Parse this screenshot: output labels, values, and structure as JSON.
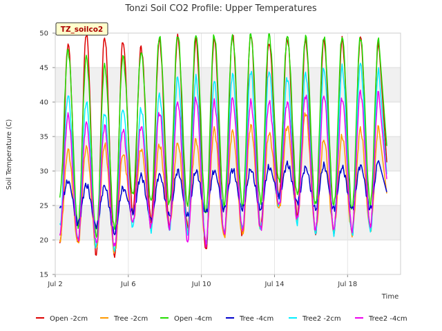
{
  "chart_data": {
    "type": "line",
    "title": "Tonzi Soil CO2 Profile: Upper Temperatures",
    "xlabel": "Time",
    "ylabel": "Soil Temperature (C)",
    "badge": "TZ_soilco2",
    "xlim": [
      2.0,
      20.9
    ],
    "ylim": [
      15,
      50
    ],
    "x_ticks": [
      {
        "label": "Jul 2",
        "value": 2
      },
      {
        "label": "Jul 6",
        "value": 6
      },
      {
        "label": "Jul 10",
        "value": 10
      },
      {
        "label": "Jul 14",
        "value": 14
      },
      {
        "label": "Jul 18",
        "value": 18
      }
    ],
    "y_ticks": [
      15,
      20,
      25,
      30,
      35,
      40,
      45,
      50
    ],
    "bands": [
      [
        20,
        25
      ],
      [
        30,
        35
      ],
      [
        40,
        45
      ]
    ],
    "days": [
      2.25,
      3.25,
      4.25,
      5.25,
      6.25,
      7.25,
      8.25,
      9.25,
      10.25,
      11.25,
      12.25,
      13.25,
      14.25,
      15.25,
      16.25,
      17.25,
      18.25,
      19.25
    ],
    "peak_offset": 0.45,
    "series": [
      {
        "name": "Open -2cm",
        "color": "#dd0000",
        "mins": [
          19.3,
          19.4,
          17.8,
          17.6,
          24.0,
          22.8,
          22.0,
          21.7,
          18.4,
          20.5,
          20.6,
          21.7,
          26.4,
          23.5,
          20.9,
          21.0,
          20.8,
          21.7
        ],
        "maxs": [
          48.5,
          50.0,
          49.5,
          48.8,
          48.0,
          49.0,
          49.5,
          49.0,
          49.2,
          49.7,
          49.8,
          48.6,
          49.2,
          49.0,
          49.0,
          49.0,
          49.4,
          49.0
        ]
      },
      {
        "name": "Tree -2cm",
        "color": "#ff9900",
        "mins": [
          20.0,
          19.5,
          18.8,
          18.2,
          22.5,
          22.0,
          21.8,
          21.5,
          19.6,
          20.5,
          20.8,
          21.5,
          24.5,
          23.0,
          21.2,
          21.4,
          21.0,
          21.5
        ],
        "maxs": [
          33.0,
          33.5,
          33.8,
          32.5,
          33.2,
          33.8,
          34.0,
          34.5,
          36.0,
          35.8,
          36.5,
          35.5,
          36.5,
          38.5,
          34.5,
          35.0,
          36.0,
          36.5
        ]
      },
      {
        "name": "Open -4cm",
        "color": "#22dd00",
        "mins": [
          26.5,
          22.0,
          20.5,
          21.5,
          26.5,
          25.5,
          25.2,
          25.0,
          24.0,
          25.0,
          25.0,
          25.5,
          28.5,
          26.5,
          25.0,
          25.0,
          24.5,
          25.2
        ],
        "maxs": [
          47.5,
          46.5,
          45.3,
          46.5,
          47.2,
          49.5,
          49.8,
          49.8,
          49.7,
          49.5,
          49.8,
          49.8,
          49.5,
          49.5,
          49.5,
          49.5,
          49.4,
          49.3
        ]
      },
      {
        "name": "Tree -4cm",
        "color": "#0000cc",
        "mins": [
          24.5,
          22.5,
          22.0,
          21.0,
          24.0,
          23.0,
          23.5,
          23.5,
          24.0,
          24.5,
          24.5,
          24.5,
          26.5,
          25.5,
          24.5,
          24.5,
          24.5,
          24.5
        ],
        "maxs": [
          28.5,
          28.0,
          27.8,
          27.5,
          29.3,
          29.5,
          30.0,
          30.0,
          30.0,
          30.2,
          30.2,
          30.5,
          31.0,
          30.5,
          30.8,
          30.5,
          30.8,
          31.5
        ]
      },
      {
        "name": "Tree2 -2cm",
        "color": "#00eeff",
        "mins": [
          22.0,
          20.0,
          19.0,
          18.5,
          22.0,
          21.5,
          21.5,
          21.0,
          19.5,
          21.0,
          21.5,
          21.5,
          25.0,
          22.5,
          21.0,
          21.0,
          20.8,
          21.2
        ],
        "maxs": [
          41.0,
          40.0,
          38.5,
          39.0,
          39.0,
          41.0,
          43.5,
          43.5,
          43.0,
          44.0,
          44.5,
          44.5,
          43.5,
          44.2,
          44.8,
          45.0,
          45.5,
          45.0
        ]
      },
      {
        "name": "Tree2 -4cm",
        "color": "#ee00ee",
        "mins": [
          21.0,
          20.0,
          19.5,
          19.0,
          22.5,
          22.0,
          21.8,
          19.8,
          19.5,
          21.0,
          21.5,
          21.5,
          25.0,
          23.0,
          21.5,
          21.5,
          21.5,
          22.0
        ],
        "maxs": [
          38.0,
          37.0,
          36.5,
          36.0,
          36.5,
          38.5,
          40.0,
          40.5,
          40.0,
          40.5,
          40.0,
          40.0,
          40.0,
          41.0,
          41.0,
          40.5,
          41.5,
          41.5
        ]
      }
    ]
  }
}
